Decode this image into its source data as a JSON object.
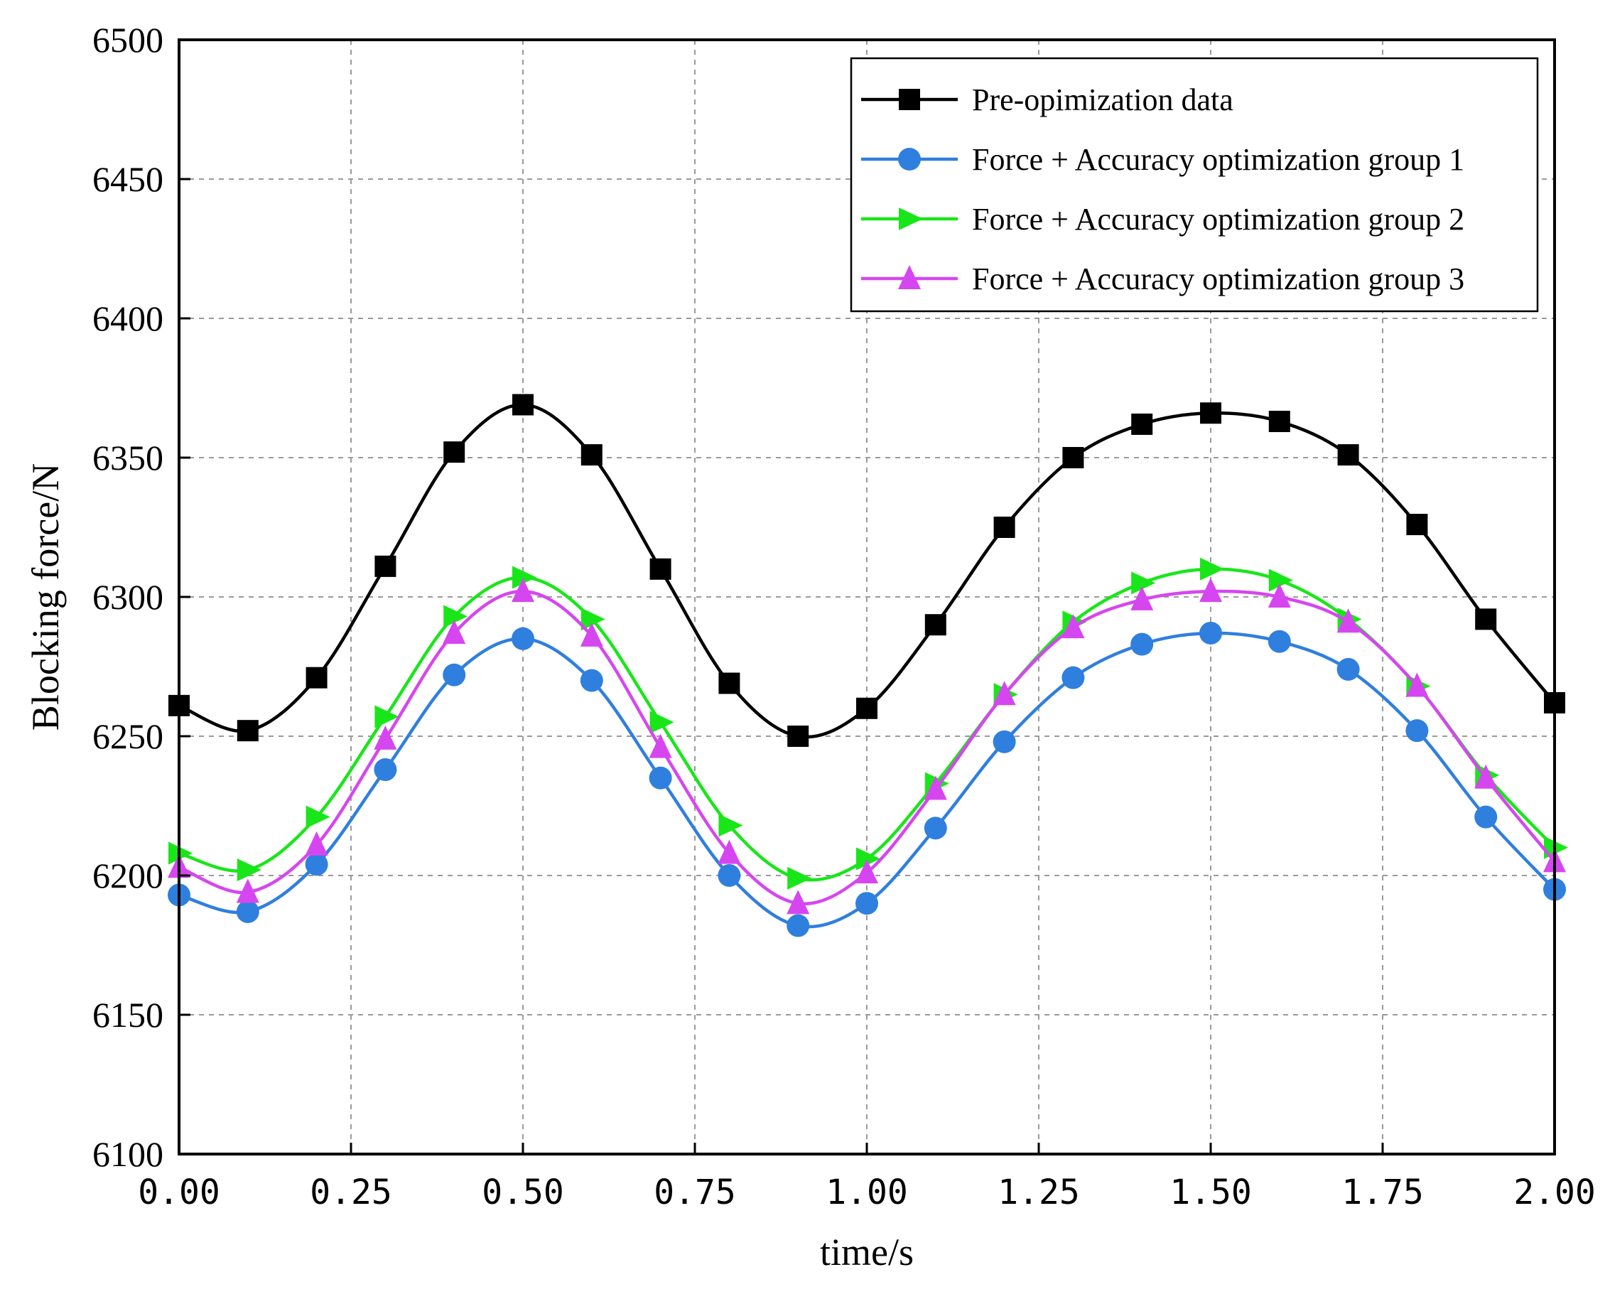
{
  "chart_data": {
    "type": "line",
    "title": "",
    "xlabel": "time/s",
    "ylabel": "Blocking force/N",
    "xlim": [
      0,
      2
    ],
    "ylim": [
      6100,
      6500
    ],
    "xticks": [
      "0.00",
      "0.25",
      "0.50",
      "0.75",
      "1.00",
      "1.25",
      "1.50",
      "1.75",
      "2.00"
    ],
    "xtick_values": [
      0,
      0.25,
      0.5,
      0.75,
      1.0,
      1.25,
      1.5,
      1.75,
      2.0
    ],
    "yticks": [
      "6100",
      "6150",
      "6200",
      "6250",
      "6300",
      "6350",
      "6400",
      "6450",
      "6500"
    ],
    "ytick_values": [
      6100,
      6150,
      6200,
      6250,
      6300,
      6350,
      6400,
      6450,
      6500
    ],
    "grid": true,
    "legend_position": "top-right",
    "x": [
      0.0,
      0.1,
      0.2,
      0.3,
      0.4,
      0.5,
      0.6,
      0.7,
      0.8,
      0.9,
      1.0,
      1.1,
      1.2,
      1.3,
      1.4,
      1.5,
      1.6,
      1.7,
      1.8,
      1.9,
      2.0
    ],
    "series": [
      {
        "name": "Pre-opimization data",
        "color": "#000000",
        "marker": "square",
        "values": [
          6261,
          6252,
          6271,
          6311,
          6352,
          6369,
          6351,
          6310,
          6269,
          6250,
          6260,
          6290,
          6325,
          6350,
          6362,
          6366,
          6363,
          6351,
          6326,
          6292,
          6262
        ]
      },
      {
        "name": "Force + Accuracy optimization group 1",
        "color": "#2f7fde",
        "marker": "circle",
        "values": [
          6193,
          6187,
          6204,
          6238,
          6272,
          6285,
          6270,
          6235,
          6200,
          6182,
          6190,
          6217,
          6248,
          6271,
          6283,
          6287,
          6284,
          6274,
          6252,
          6221,
          6195
        ]
      },
      {
        "name": "Force + Accuracy optimization group 2",
        "color": "#19e619",
        "marker": "triangle-right",
        "values": [
          6208,
          6202,
          6221,
          6257,
          6293,
          6307,
          6292,
          6255,
          6218,
          6199,
          6206,
          6233,
          6265,
          6291,
          6305,
          6310,
          6306,
          6292,
          6268,
          6236,
          6210
        ]
      },
      {
        "name": "Force + Accuracy optimization group 3",
        "color": "#d646f0",
        "marker": "triangle-up",
        "values": [
          6203,
          6194,
          6211,
          6249,
          6287,
          6302,
          6286,
          6246,
          6208,
          6190,
          6201,
          6231,
          6265,
          6289,
          6299,
          6302,
          6300,
          6291,
          6268,
          6235,
          6205
        ]
      }
    ]
  }
}
